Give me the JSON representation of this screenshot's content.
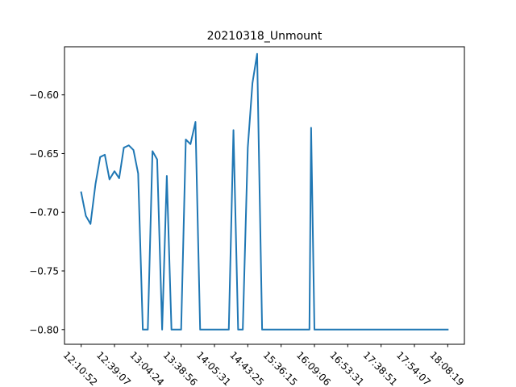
{
  "chart_data": {
    "type": "line",
    "title": "20210318_Unmount",
    "xlabel": "",
    "ylabel": "",
    "x_ticks": [
      "12:10:52",
      "12:39:07",
      "13:04:24",
      "13:38:56",
      "14:05:31",
      "14:43:25",
      "15:36:15",
      "16:09:06",
      "16:53:31",
      "17:38:51",
      "17:54:07",
      "18:08:19"
    ],
    "y_ticks": [
      -0.8,
      -0.75,
      -0.7,
      -0.65,
      -0.6
    ],
    "xlim": [
      -0.5,
      11.5
    ],
    "ylim": [
      -0.8125,
      -0.559
    ],
    "grid": false,
    "series_color": "#1f77b4",
    "points": [
      [
        0.0,
        -0.683
      ],
      [
        0.14,
        -0.703
      ],
      [
        0.28,
        -0.71
      ],
      [
        0.43,
        -0.676
      ],
      [
        0.57,
        -0.653
      ],
      [
        0.71,
        -0.651
      ],
      [
        0.85,
        -0.672
      ],
      [
        1.0,
        -0.665
      ],
      [
        1.14,
        -0.671
      ],
      [
        1.28,
        -0.645
      ],
      [
        1.43,
        -0.643
      ],
      [
        1.57,
        -0.647
      ],
      [
        1.71,
        -0.667
      ],
      [
        1.85,
        -0.8
      ],
      [
        2.0,
        -0.8
      ],
      [
        2.14,
        -0.648
      ],
      [
        2.28,
        -0.655
      ],
      [
        2.43,
        -0.8
      ],
      [
        2.57,
        -0.669
      ],
      [
        2.71,
        -0.8
      ],
      [
        2.85,
        -0.8
      ],
      [
        3.0,
        -0.8
      ],
      [
        3.14,
        -0.638
      ],
      [
        3.28,
        -0.642
      ],
      [
        3.43,
        -0.623
      ],
      [
        3.57,
        -0.8
      ],
      [
        3.71,
        -0.8
      ],
      [
        3.85,
        -0.8
      ],
      [
        4.0,
        -0.8
      ],
      [
        4.14,
        -0.8
      ],
      [
        4.28,
        -0.8
      ],
      [
        4.43,
        -0.8
      ],
      [
        4.57,
        -0.63
      ],
      [
        4.71,
        -0.8
      ],
      [
        4.85,
        -0.8
      ],
      [
        5.0,
        -0.645
      ],
      [
        5.14,
        -0.59
      ],
      [
        5.28,
        -0.565
      ],
      [
        5.43,
        -0.8
      ],
      [
        5.57,
        -0.8
      ],
      [
        5.71,
        -0.8
      ],
      [
        5.85,
        -0.8
      ],
      [
        6.0,
        -0.8
      ],
      [
        6.14,
        -0.8
      ],
      [
        6.28,
        -0.8
      ],
      [
        6.43,
        -0.8
      ],
      [
        6.57,
        -0.8
      ],
      [
        6.71,
        -0.8
      ],
      [
        6.85,
        -0.8
      ],
      [
        6.9,
        -0.628
      ],
      [
        7.0,
        -0.8
      ],
      [
        7.14,
        -0.8
      ],
      [
        7.28,
        -0.8
      ],
      [
        7.43,
        -0.8
      ],
      [
        7.57,
        -0.8
      ],
      [
        7.71,
        -0.8
      ],
      [
        7.85,
        -0.8
      ],
      [
        8.0,
        -0.8
      ],
      [
        8.14,
        -0.8
      ],
      [
        8.28,
        -0.8
      ],
      [
        8.43,
        -0.8
      ],
      [
        8.57,
        -0.8
      ],
      [
        8.71,
        -0.8
      ],
      [
        8.85,
        -0.8
      ],
      [
        9.0,
        -0.8
      ],
      [
        9.14,
        -0.8
      ],
      [
        9.28,
        -0.8
      ],
      [
        9.43,
        -0.8
      ],
      [
        9.57,
        -0.8
      ],
      [
        9.71,
        -0.8
      ],
      [
        9.85,
        -0.8
      ],
      [
        10.0,
        -0.8
      ],
      [
        10.14,
        -0.8
      ],
      [
        10.28,
        -0.8
      ],
      [
        10.43,
        -0.8
      ],
      [
        10.57,
        -0.8
      ],
      [
        10.71,
        -0.8
      ],
      [
        10.85,
        -0.8
      ],
      [
        11.0,
        -0.8
      ]
    ]
  }
}
